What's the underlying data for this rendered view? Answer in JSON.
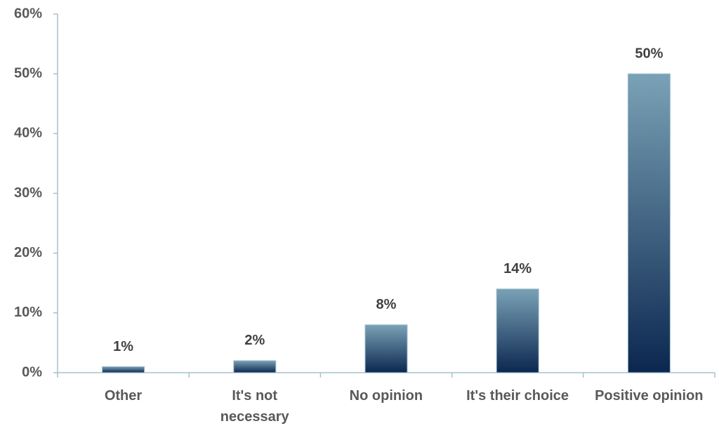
{
  "chart_data": {
    "type": "bar",
    "categories": [
      "Other",
      "It's not\nnecessary",
      "No opinion",
      "It's their choice",
      "Positive opinion"
    ],
    "values": [
      1,
      2,
      8,
      14,
      50
    ],
    "value_labels": [
      "1%",
      "2%",
      "8%",
      "14%",
      "50%"
    ],
    "gradient": [
      "#7aa2b6",
      "#0b2750"
    ],
    "ylim": [
      0,
      60
    ],
    "yticks": [
      {
        "value": 0,
        "label": "0%"
      },
      {
        "value": 10,
        "label": "10%"
      },
      {
        "value": 20,
        "label": "20%"
      },
      {
        "value": 30,
        "label": "30%"
      },
      {
        "value": 40,
        "label": "40%"
      },
      {
        "value": 50,
        "label": "50%"
      },
      {
        "value": 60,
        "label": "60%"
      }
    ],
    "grid": false
  }
}
